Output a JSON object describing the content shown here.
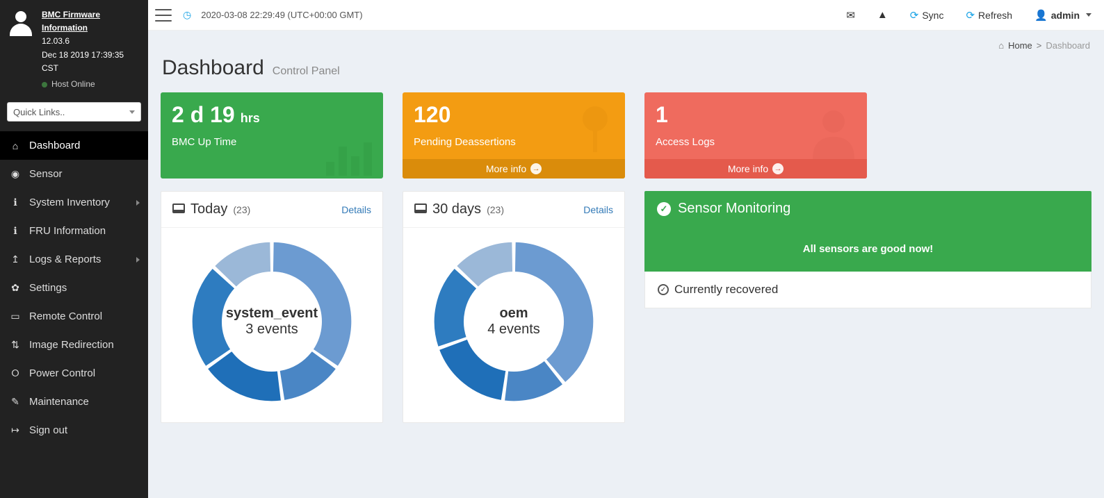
{
  "theme": {
    "sidebar_bg": "#222222",
    "page_bg": "#ecf0f5",
    "accent_blue": "#17a2e6",
    "green": "#39a94d",
    "orange": "#f39c12",
    "orange_dark": "#da8c0b",
    "red": "#ef6b5e",
    "red_dark": "#e45a4c",
    "link": "#337ab7"
  },
  "sidebar": {
    "firmware_title": "BMC Firmware Information",
    "version": "12.03.6",
    "build_date": "Dec 18 2019 17:39:35 CST",
    "host_status": "Host Online",
    "quicklinks_placeholder": "Quick Links..",
    "items": [
      {
        "icon": "⌂",
        "label": "Dashboard",
        "name": "dashboard",
        "chevron": false,
        "active": true
      },
      {
        "icon": "◉",
        "label": "Sensor",
        "name": "sensor",
        "chevron": false
      },
      {
        "icon": "ℹ",
        "label": "System Inventory",
        "name": "system-inventory",
        "chevron": true
      },
      {
        "icon": "ℹ",
        "label": "FRU Information",
        "name": "fru-information",
        "chevron": false
      },
      {
        "icon": "↥",
        "label": "Logs & Reports",
        "name": "logs-reports",
        "chevron": true
      },
      {
        "icon": "✿",
        "label": "Settings",
        "name": "settings",
        "chevron": false
      },
      {
        "icon": "▭",
        "label": "Remote Control",
        "name": "remote-control",
        "chevron": false
      },
      {
        "icon": "⇅",
        "label": "Image Redirection",
        "name": "image-redirection",
        "chevron": false
      },
      {
        "icon": "⭘",
        "label": "Power Control",
        "name": "power-control",
        "chevron": false
      },
      {
        "icon": "✎",
        "label": "Maintenance",
        "name": "maintenance",
        "chevron": false
      },
      {
        "icon": "↦",
        "label": "Sign out",
        "name": "sign-out",
        "chevron": false
      }
    ]
  },
  "topbar": {
    "timestamp": "2020-03-08 22:29:49 (UTC+00:00 GMT)",
    "sync": "Sync",
    "refresh": "Refresh",
    "user": "admin"
  },
  "breadcrumb": {
    "home": "Home",
    "current": "Dashboard"
  },
  "header": {
    "title": "Dashboard",
    "subtitle": "Control Panel"
  },
  "cards": {
    "uptime": {
      "value": "2 d 19",
      "unit": "hrs",
      "label": "BMC Up Time"
    },
    "pending": {
      "value": "120",
      "label": "Pending Deassertions",
      "more": "More info"
    },
    "access": {
      "value": "1",
      "label": "Access Logs",
      "more": "More info"
    }
  },
  "panels": {
    "details_label": "Details",
    "today": {
      "title": "Today",
      "count": "23",
      "center_line1": "system_event",
      "center_line2": "3 events",
      "chart": {
        "type": "donut",
        "inner_radius_pct": 62,
        "outer_radius_pct": 100,
        "gap_deg": 2,
        "slices": [
          {
            "value": 8,
            "color": "#6c9bd1"
          },
          {
            "value": 3,
            "color": "#4a86c5"
          },
          {
            "value": 4,
            "color": "#1f6fb8"
          },
          {
            "value": 5,
            "color": "#2e7cc0"
          },
          {
            "value": 3,
            "color": "#9bb8d8"
          }
        ]
      }
    },
    "days30": {
      "title": "30 days",
      "count": "23",
      "center_line1": "oem",
      "center_line2": "4 events",
      "chart": {
        "type": "donut",
        "inner_radius_pct": 62,
        "outer_radius_pct": 100,
        "gap_deg": 2,
        "slices": [
          {
            "value": 9,
            "color": "#6c9bd1"
          },
          {
            "value": 3,
            "color": "#4a86c5"
          },
          {
            "value": 4,
            "color": "#1f6fb8"
          },
          {
            "value": 4,
            "color": "#2e7cc0"
          },
          {
            "value": 3,
            "color": "#9bb8d8"
          }
        ]
      }
    }
  },
  "sensor": {
    "title": "Sensor Monitoring",
    "message": "All sensors are good now!",
    "footer": "Currently recovered"
  }
}
